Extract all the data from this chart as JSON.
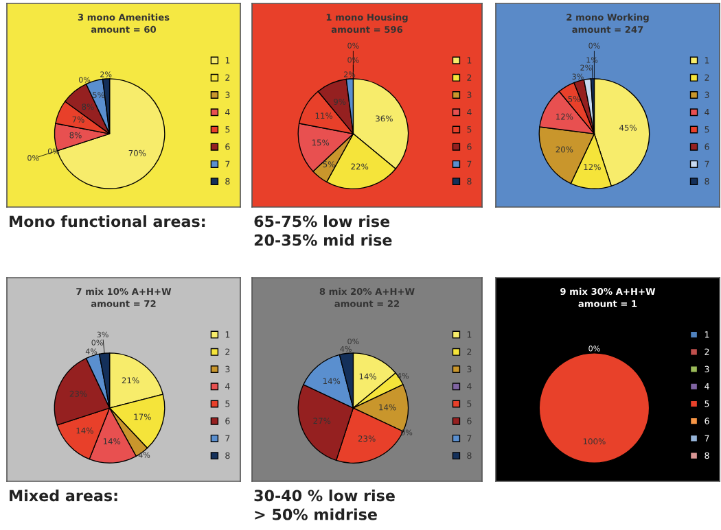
{
  "chart_data": [
    {
      "type": "pie",
      "title": "3 mono Amenities\namount = 60",
      "legend": "right",
      "categories": [
        "1",
        "2",
        "3",
        "4",
        "5",
        "6",
        null,
        "7",
        "8"
      ],
      "values": [
        70,
        0,
        0,
        8,
        7,
        8,
        0,
        5,
        2
      ],
      "colors": [
        "#f7ec6b",
        "#f5e43a",
        "#c9962c",
        "#e85050",
        "#e8402a",
        "#952020",
        "#000000",
        "#5a8fcf",
        "#14305a"
      ],
      "value_labels": [
        "70%",
        "0%",
        "0%",
        "8%",
        "7%",
        "8%",
        "0%",
        "5%",
        "2%"
      ],
      "annotations": [
        "Mono functional areas:"
      ]
    },
    {
      "type": "pie",
      "title": "1 mono Housing\namount = 596",
      "legend": "right",
      "categories": [
        "1",
        "2",
        "3",
        "4",
        "5",
        "6",
        "7",
        null,
        "8"
      ],
      "values": [
        36,
        22,
        5,
        15,
        11,
        9,
        2,
        0,
        0
      ],
      "colors": [
        "#f7ec6b",
        "#f5e43a",
        "#c9962c",
        "#e85050",
        "#e8402a",
        "#952020",
        "#5a8fcf",
        "#000000",
        "#14305a"
      ],
      "value_labels": [
        "36%",
        "22%",
        "5%",
        "15%",
        "11%",
        "9%",
        "2%",
        "0%",
        "0%"
      ],
      "annotations": [
        "65-75% low rise",
        "20-35% mid rise"
      ]
    },
    {
      "type": "pie",
      "title": "2 mono Working\namount = 247",
      "legend": "right",
      "categories": [
        "1",
        "2",
        "3",
        "4",
        "5",
        "6",
        "7",
        "8",
        null
      ],
      "values": [
        45,
        12,
        20,
        12,
        5,
        3,
        2,
        1,
        0
      ],
      "colors": [
        "#f7ec6b",
        "#f5e43a",
        "#c9962c",
        "#e85050",
        "#e8402a",
        "#952020",
        "#c6d9f0",
        "#14305a",
        "#000000"
      ],
      "value_labels": [
        "45%",
        "12%",
        "20%",
        "12%",
        "5%",
        "3%",
        "2%",
        "1%",
        "0%"
      ]
    },
    {
      "type": "pie",
      "title": "7 mix 10% A+H+W\namount = 72",
      "legend": "right",
      "categories": [
        "1",
        "2",
        "3",
        "4",
        "5",
        "6",
        "7",
        null,
        "8"
      ],
      "values": [
        21,
        17,
        4,
        14,
        14,
        23,
        4,
        0,
        3
      ],
      "colors": [
        "#f7ec6b",
        "#f5e43a",
        "#c9962c",
        "#e85050",
        "#e8402a",
        "#952020",
        "#5a8fcf",
        "#000000",
        "#14305a"
      ],
      "value_labels": [
        "21%",
        "17%",
        "4%",
        "14%",
        "14%",
        "23%",
        "4%",
        "0%",
        "3%"
      ],
      "annotations": [
        "Mixed areas:"
      ]
    },
    {
      "type": "pie",
      "title": "8 mix 20% A+H+W\namount = 22",
      "legend": "right",
      "categories": [
        "1",
        "2",
        "3",
        "4",
        "5",
        "6",
        "7",
        "8",
        null
      ],
      "values": [
        14,
        4,
        14,
        0,
        23,
        27,
        14,
        4,
        0
      ],
      "colors": [
        "#f7ec6b",
        "#f5e43a",
        "#c9962c",
        "#8064a2",
        "#e8402a",
        "#952020",
        "#5a8fcf",
        "#14305a",
        "#000000"
      ],
      "value_labels": [
        "14%",
        "4%",
        "14%",
        "0%",
        "23%",
        "27%",
        "14%",
        "4%",
        "0%"
      ],
      "annotations": [
        "30-40 % low rise",
        "> 50% midrise"
      ]
    },
    {
      "type": "pie",
      "title": "9 mix 30% A+H+W\namount = 1",
      "legend": "right",
      "categories": [
        "1",
        "2",
        "3",
        "4",
        "5",
        "6",
        "7",
        "8"
      ],
      "values": [
        0,
        0,
        0,
        0,
        100,
        0,
        0,
        0
      ],
      "colors": [
        "#4f81bd",
        "#c0504d",
        "#9bbb59",
        "#8064a2",
        "#e8412a",
        "#f79646",
        "#95b3d7",
        "#d99694"
      ],
      "value_labels": [
        "0%",
        null,
        null,
        null,
        "100%",
        null,
        null,
        null
      ]
    }
  ]
}
